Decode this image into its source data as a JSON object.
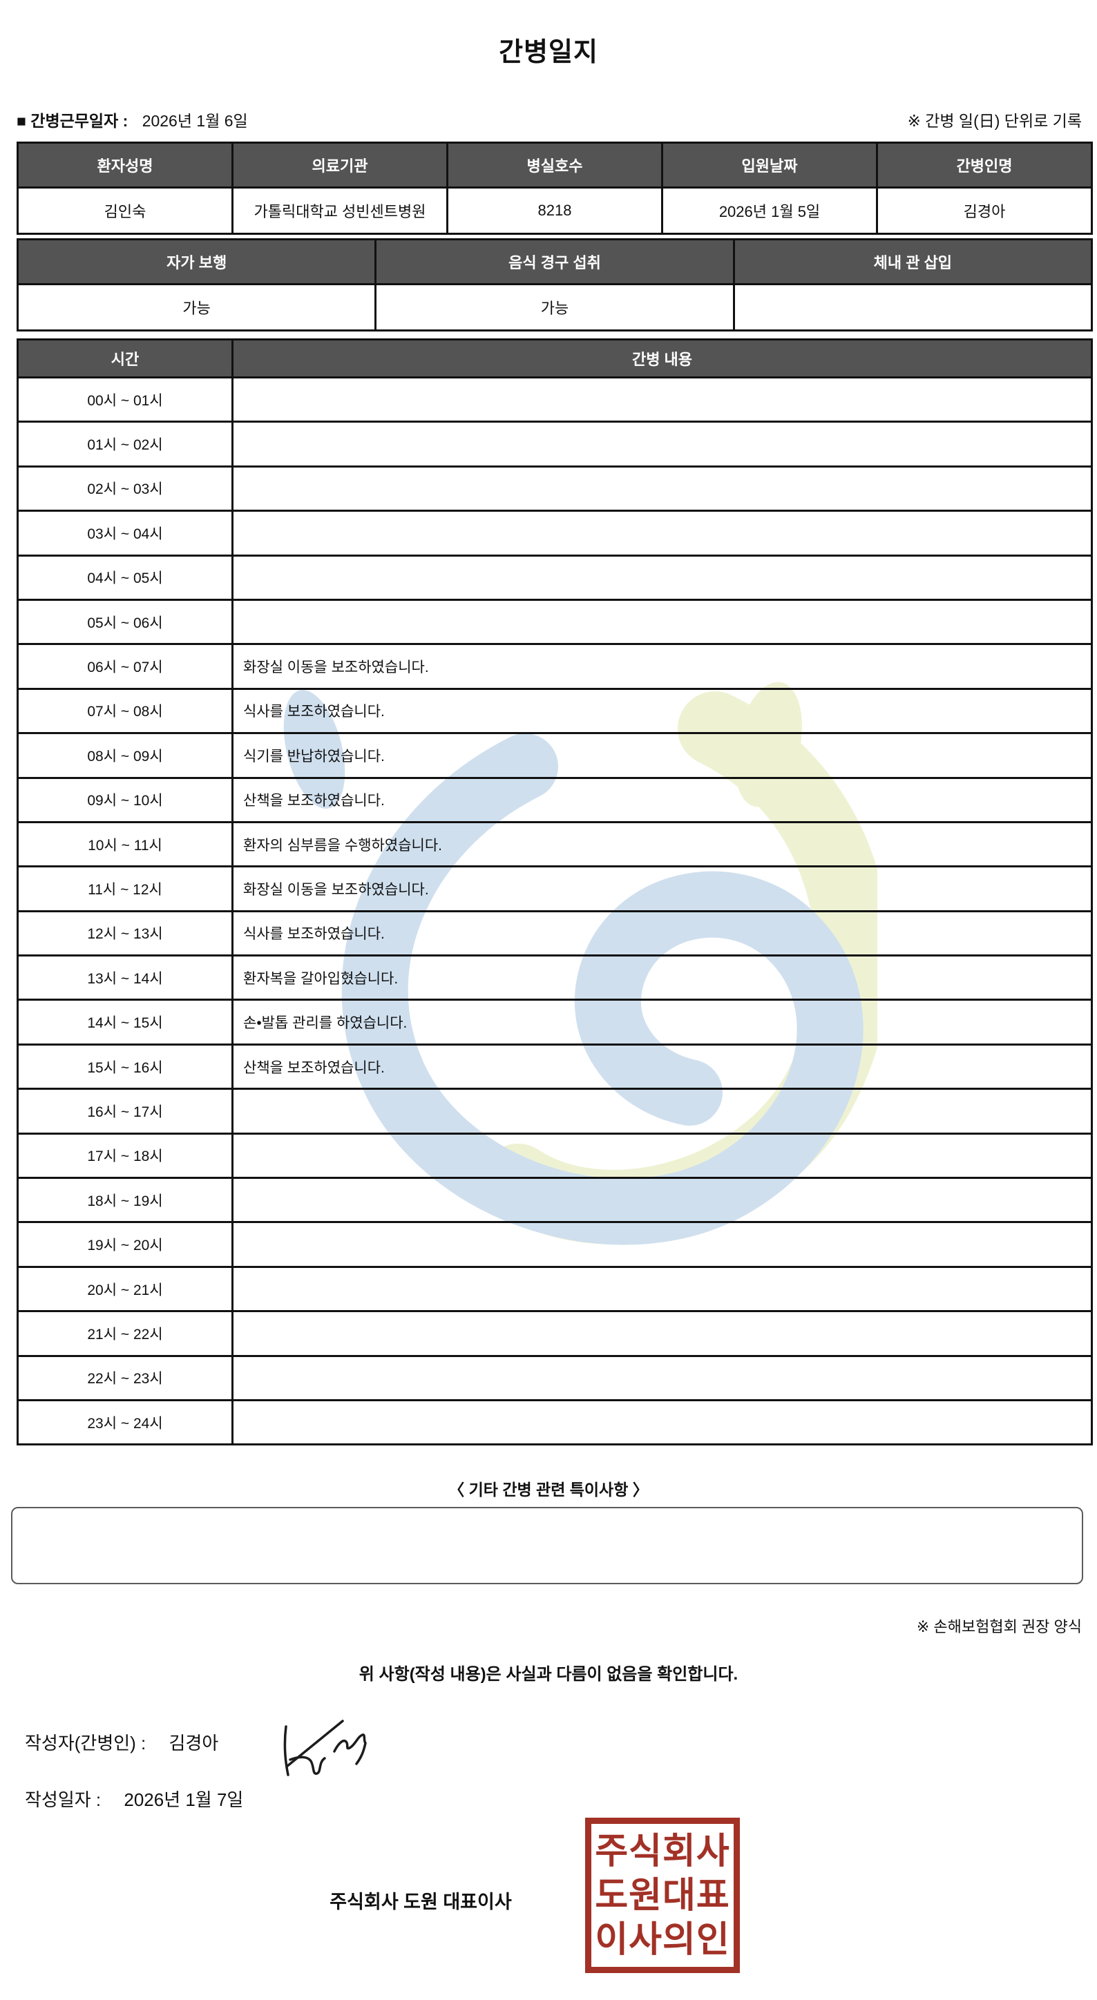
{
  "title": "간병일지",
  "top": {
    "work_date_label": "■ 간병근무일자  :",
    "work_date": "2026년 1월 6일",
    "unit_note": "※ 간병 일(日) 단위로 기록"
  },
  "patient_table": {
    "headers": [
      "환자성명",
      "의료기관",
      "병실호수",
      "입원날짜",
      "간병인명"
    ],
    "values": [
      "김인숙",
      "가톨릭대학교 성빈센트병원",
      "8218",
      "2026년 1월 5일",
      "김경아"
    ]
  },
  "status_table": {
    "headers": [
      "자가 보행",
      "음식 경구 섭취",
      "체내 관 삽입"
    ],
    "values": [
      "가능",
      "가능",
      ""
    ]
  },
  "care_table": {
    "time_header": "시간",
    "content_header": "간병 내용",
    "rows": [
      {
        "time": "00시 ~ 01시",
        "content": ""
      },
      {
        "time": "01시 ~ 02시",
        "content": ""
      },
      {
        "time": "02시 ~ 03시",
        "content": ""
      },
      {
        "time": "03시 ~ 04시",
        "content": ""
      },
      {
        "time": "04시 ~ 05시",
        "content": ""
      },
      {
        "time": "05시 ~ 06시",
        "content": ""
      },
      {
        "time": "06시 ~ 07시",
        "content": "화장실 이동을 보조하였습니다."
      },
      {
        "time": "07시 ~ 08시",
        "content": "식사를 보조하였습니다."
      },
      {
        "time": "08시 ~ 09시",
        "content": "식기를 반납하였습니다."
      },
      {
        "time": "09시 ~ 10시",
        "content": "산책을 보조하였습니다."
      },
      {
        "time": "10시 ~ 11시",
        "content": "환자의 심부름을 수행하였습니다."
      },
      {
        "time": "11시 ~ 12시",
        "content": "화장실 이동을 보조하였습니다."
      },
      {
        "time": "12시 ~ 13시",
        "content": "식사를 보조하였습니다."
      },
      {
        "time": "13시 ~ 14시",
        "content": "환자복을 갈아입혔습니다."
      },
      {
        "time": "14시 ~ 15시",
        "content": "손•발톱 관리를 하였습니다."
      },
      {
        "time": "15시 ~ 16시",
        "content": "산책을 보조하였습니다."
      },
      {
        "time": "16시 ~ 17시",
        "content": ""
      },
      {
        "time": "17시 ~ 18시",
        "content": ""
      },
      {
        "time": "18시 ~ 19시",
        "content": ""
      },
      {
        "time": "19시 ~ 20시",
        "content": ""
      },
      {
        "time": "20시 ~ 21시",
        "content": ""
      },
      {
        "time": "21시 ~ 22시",
        "content": ""
      },
      {
        "time": "22시 ~ 23시",
        "content": ""
      },
      {
        "time": "23시 ~ 24시",
        "content": ""
      }
    ]
  },
  "notes": {
    "heading": "〈 기타 간병 관련 특이사항 〉",
    "content": "",
    "form_note": "※ 손해보험협회 권장 양식"
  },
  "footer": {
    "confirmation": "위 사항(작성 내용)은 사실과 다름이 없음을 확인합니다.",
    "writer_label": "작성자(간병인) : ",
    "writer_name": "김경아",
    "date_label": "작성일자 : ",
    "date_value": "2026년 1월 7일",
    "company_line": "주식회사 도원    대표이사",
    "stamp_lines": [
      "주식회사",
      "도원대표",
      "이사의인"
    ]
  },
  "colors": {
    "header_bg": "#545454",
    "header_text": "#ffffff",
    "table_border": "#111111",
    "stamp_red": "#a23126",
    "watermark_blue": "#cfdfee",
    "watermark_green": "#eef2d3"
  }
}
